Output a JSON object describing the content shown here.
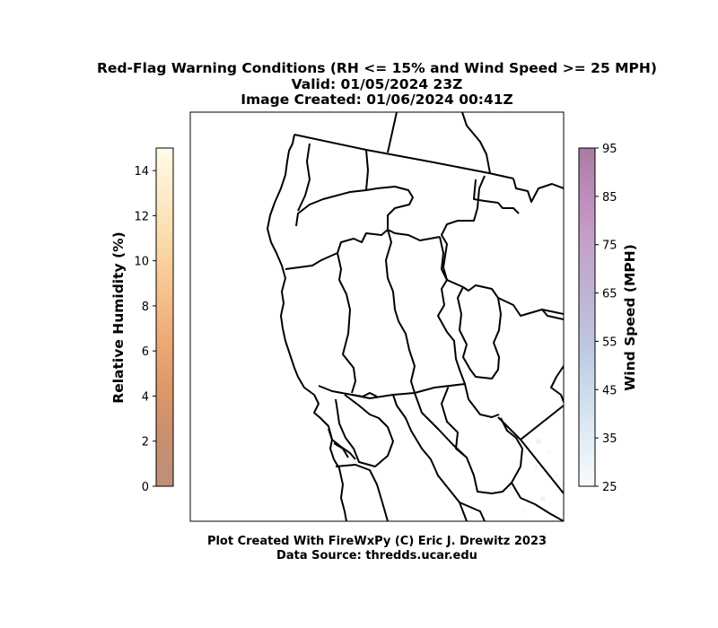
{
  "title": {
    "line1": "Red-Flag Warning Conditions (RH <= 15% and Wind Speed >= 25 MPH)",
    "line2": "Valid: 01/05/2024 23Z",
    "line3": "Image Created: 01/06/2024 00:41Z"
  },
  "footer": {
    "line1": "Plot Created With FireWxPy (C) Eric J. Drewitz 2023",
    "line2": "Data Source: thredds.ucar.edu"
  },
  "colorbars": {
    "humidity": {
      "label": "Relative Humidity (%)",
      "min": 0,
      "max": 15,
      "ticks": [
        0,
        2,
        4,
        6,
        8,
        10,
        12,
        14
      ],
      "tick_labels": [
        "0",
        "2",
        "4",
        "6",
        "8",
        "10",
        "12",
        "14"
      ],
      "colormap": [
        "#bb9079",
        "#c98f6e",
        "#dc9868",
        "#ecaa75",
        "#f6c18c",
        "#fbd9a8",
        "#fdebc8",
        "#fefbe8"
      ]
    },
    "wind": {
      "label": "Wind Speed (MPH)",
      "min": 25,
      "max": 95,
      "ticks": [
        25,
        35,
        45,
        55,
        65,
        75,
        85,
        95
      ],
      "tick_labels": [
        "25",
        "35",
        "45",
        "55",
        "65",
        "75",
        "85",
        "95"
      ],
      "colormap": [
        "#f7fbfd",
        "#e2ecf4",
        "#cbdbea",
        "#bdc6e1",
        "#bfb3d6",
        "#c4a2ca",
        "#bf8cbd",
        "#a97ca0"
      ]
    }
  },
  "map": {
    "region": "Northern California",
    "boundary_color": "#000000"
  }
}
